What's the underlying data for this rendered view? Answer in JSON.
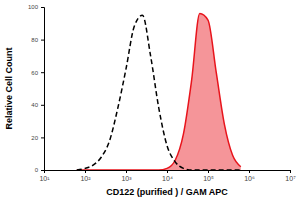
{
  "chart_data": {
    "type": "line",
    "x_label": "CD122 (purified ) / GAM APC",
    "y_label": "Relative Cell Count",
    "log": "x",
    "x": [
      63,
      100,
      158,
      251,
      398,
      631,
      1000,
      1585,
      2512,
      3981,
      6310,
      10000,
      15849,
      25119,
      39811,
      63096,
      100000,
      158489,
      251189,
      398107,
      630957
    ],
    "series": [
      {
        "type": "line",
        "color": "#000000",
        "line_style": "dashed",
        "values": [
          0,
          1,
          3,
          8,
          18,
          38,
          62,
          88,
          95,
          70,
          38,
          15,
          5,
          1,
          0,
          0,
          0,
          0,
          0,
          0,
          0
        ]
      },
      {
        "type": "area",
        "color": "#e8141c",
        "line_style": "solid",
        "values": [
          0,
          0,
          0,
          0,
          0,
          0,
          0,
          0,
          0,
          0,
          0,
          1,
          6,
          22,
          55,
          96,
          92,
          60,
          28,
          9,
          2
        ]
      }
    ],
    "xlim": [
      10,
      10000000
    ],
    "xticks": [
      {
        "value": 10,
        "label": "10¹"
      },
      {
        "value": 100,
        "label": "10²"
      },
      {
        "value": 1000,
        "label": "10³"
      },
      {
        "value": 10000,
        "label": "10⁴"
      },
      {
        "value": 100000,
        "label": "10⁵"
      },
      {
        "value": 1000000,
        "label": "10⁶"
      },
      {
        "value": 10000000,
        "label": "10⁷"
      }
    ],
    "ylim": [
      0,
      100
    ],
    "yticks": [
      0,
      20,
      40,
      60,
      80,
      100
    ]
  }
}
